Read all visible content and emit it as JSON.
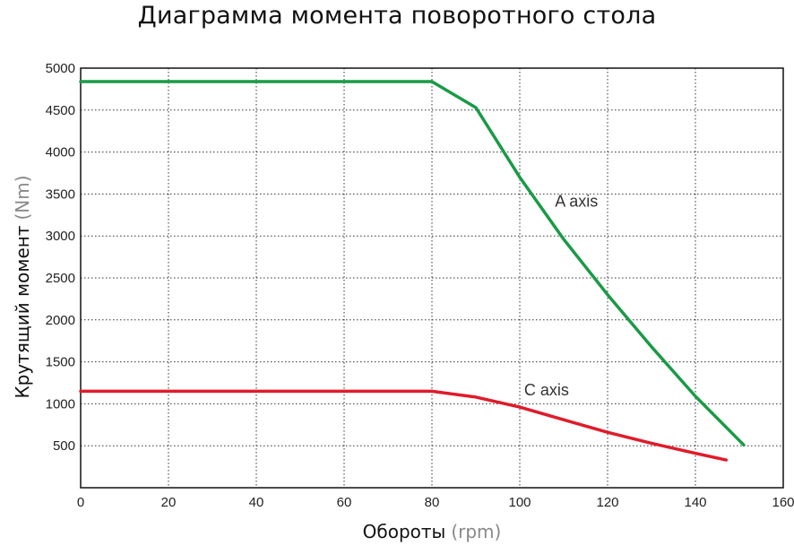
{
  "chart_data": {
    "type": "line",
    "title": "Диаграмма момента поворотного стола",
    "xlabel": "Обороты",
    "xlabel_unit": "(rpm)",
    "ylabel": "Крутящий момент",
    "ylabel_unit": "(Nm)",
    "xlim": [
      0,
      160
    ],
    "ylim": [
      0,
      5000
    ],
    "xticks": [
      0,
      20,
      40,
      60,
      80,
      100,
      120,
      140,
      160
    ],
    "yticks": [
      500,
      1000,
      1500,
      2000,
      2500,
      3000,
      3500,
      4000,
      4500,
      5000
    ],
    "grid": true,
    "series": [
      {
        "name": "A axis",
        "color": "#1a9a46",
        "points": [
          [
            0,
            4840
          ],
          [
            80,
            4840
          ],
          [
            90,
            4530
          ],
          [
            100,
            3700
          ],
          [
            110,
            2960
          ],
          [
            120,
            2300
          ],
          [
            130,
            1680
          ],
          [
            140,
            1090
          ],
          [
            151,
            510
          ]
        ]
      },
      {
        "name": "C axis",
        "color": "#e01b2a",
        "points": [
          [
            0,
            1150
          ],
          [
            80,
            1150
          ],
          [
            90,
            1080
          ],
          [
            100,
            960
          ],
          [
            110,
            810
          ],
          [
            120,
            660
          ],
          [
            130,
            530
          ],
          [
            140,
            410
          ],
          [
            147,
            330
          ]
        ]
      }
    ],
    "annotations": [
      {
        "text": "A axis",
        "x": 108,
        "y": 3350,
        "series": "A axis"
      },
      {
        "text": "C axis",
        "x": 101,
        "y": 1100,
        "series": "C axis"
      }
    ]
  }
}
